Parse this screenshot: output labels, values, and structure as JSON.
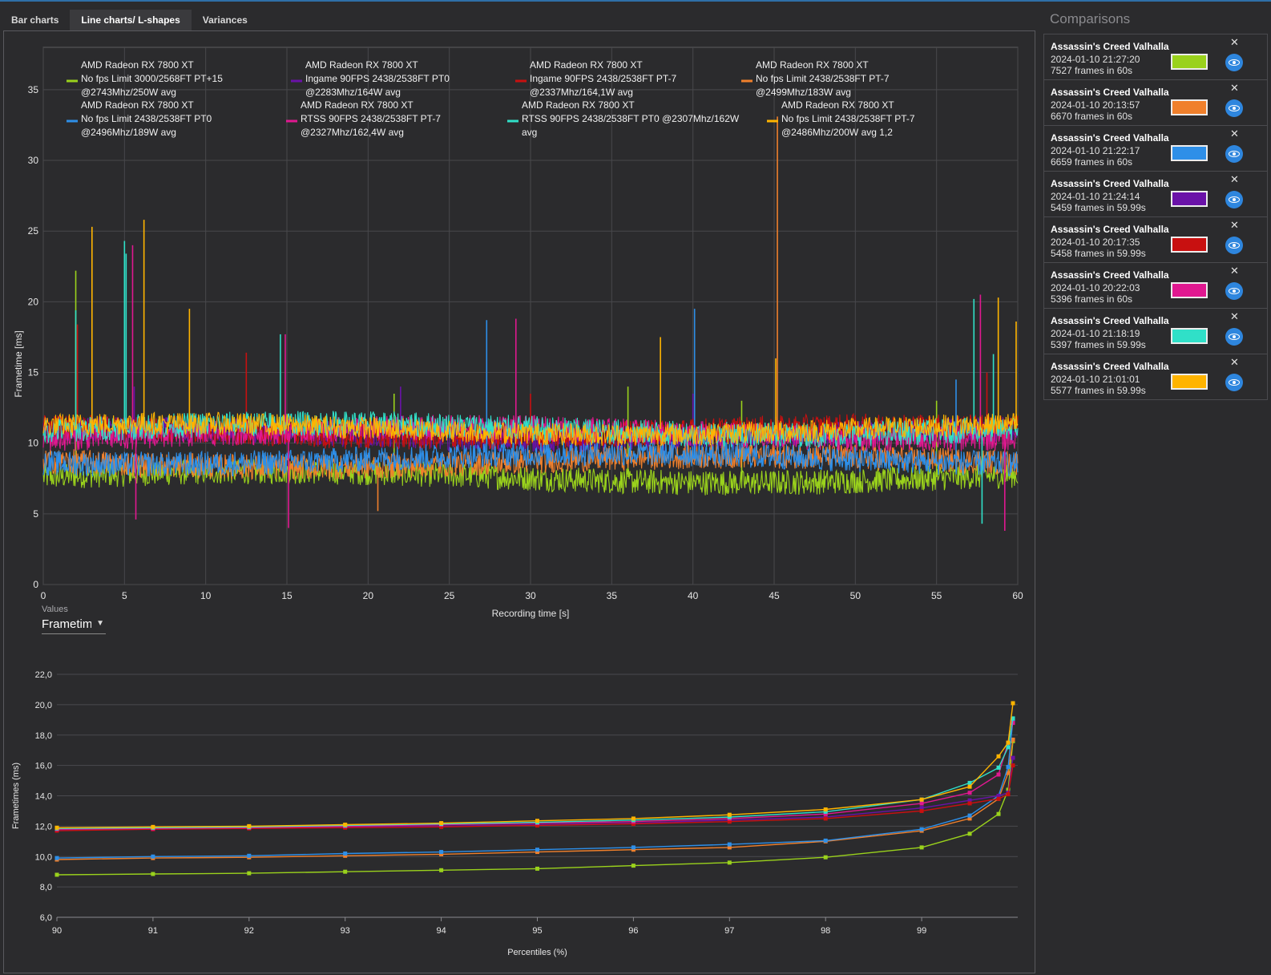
{
  "tabs": [
    {
      "label": "Bar charts"
    },
    {
      "label": "Line charts/ L-shapes"
    },
    {
      "label": "Variances"
    }
  ],
  "comparisons_title": "Comparisons",
  "comparisons": [
    {
      "game": "Assassin's Creed Valhalla",
      "date": "2024-01-10 21:27:20",
      "frames": "7527 frames in 60s",
      "color": "#9ad21c"
    },
    {
      "game": "Assassin's Creed Valhalla",
      "date": "2024-01-10 20:13:57",
      "frames": "6670 frames in 60s",
      "color": "#f0802c"
    },
    {
      "game": "Assassin's Creed Valhalla",
      "date": "2024-01-10 21:22:17",
      "frames": "6659 frames in 60s",
      "color": "#2e8fe8"
    },
    {
      "game": "Assassin's Creed Valhalla",
      "date": "2024-01-10 21:24:14",
      "frames": "5459 frames in 59.99s",
      "color": "#6a12a8"
    },
    {
      "game": "Assassin's Creed Valhalla",
      "date": "2024-01-10 20:17:35",
      "frames": "5458 frames in 59.99s",
      "color": "#c81010"
    },
    {
      "game": "Assassin's Creed Valhalla",
      "date": "2024-01-10 20:22:03",
      "frames": "5396 frames in 60s",
      "color": "#e01890"
    },
    {
      "game": "Assassin's Creed Valhalla",
      "date": "2024-01-10 21:18:19",
      "frames": "5397 frames in 59.99s",
      "color": "#30e0c8"
    },
    {
      "game": "Assassin's Creed Valhalla",
      "date": "2024-01-10 21:01:01",
      "frames": "5577 frames in 59.99s",
      "color": "#ffb400"
    }
  ],
  "values_selector": {
    "label": "Values",
    "selected": "Frametimes"
  },
  "chart_data": [
    {
      "type": "line",
      "xlabel": "Recording time [s]",
      "ylabel": "Frametime [ms]",
      "xlim": [
        0,
        60
      ],
      "ylim": [
        0,
        38
      ],
      "xticks": [
        0,
        5,
        10,
        15,
        20,
        25,
        30,
        35,
        40,
        45,
        50,
        55,
        60
      ],
      "yticks": [
        0,
        5,
        10,
        15,
        20,
        25,
        30,
        35
      ],
      "grid": true,
      "legend_position": "top",
      "series": [
        {
          "name": "AMD Radeon RX 7800 XT\nNo fps Limit 3000/2568FT PT+15\n@2743Mhz/250W avg",
          "color": "#9ad21c",
          "mean": 7.6,
          "spread": 0.9,
          "spikes": [
            [
              2.0,
              22.2
            ],
            [
              21.6,
              13.5
            ],
            [
              36.0,
              14.0
            ],
            [
              43.0,
              13.0
            ],
            [
              55.0,
              13.0
            ]
          ]
        },
        {
          "name": "AMD Radeon RX 7800 XT\nIngame 90FPS 2438/2538FT PT0\n@2283Mhz/164W avg",
          "color": "#6a12a8",
          "mean": 10.6,
          "spread": 0.9,
          "spikes": [
            [
              5.6,
              14.0
            ],
            [
              22.0,
              14.0
            ],
            [
              40.0,
              13.5
            ]
          ]
        },
        {
          "name": "AMD Radeon RX 7800 XT\nIngame 90FPS 2438/2538FT PT-7\n@2337Mhz/164,1W avg",
          "color": "#c81010",
          "mean": 10.8,
          "spread": 0.9,
          "spikes": [
            [
              2.1,
              18.4
            ],
            [
              12.5,
              16.4
            ],
            [
              30.0,
              13.5
            ],
            [
              58.1,
              15.0
            ]
          ]
        },
        {
          "name": "AMD Radeon RX 7800 XT\nNo fps Limit 2438/2538FT PT-7\n@2499Mhz/183W avg",
          "color": "#f0802c",
          "mean": 8.7,
          "spread": 0.9,
          "spikes": [
            [
              45.2,
              33.1
            ],
            [
              20.6,
              5.2
            ]
          ]
        },
        {
          "name": "AMD Radeon RX 7800 XT\nNo fps Limit 2438/2538FT PT0\n@2496Mhz/189W avg",
          "color": "#2e8fe8",
          "mean": 8.9,
          "spread": 0.9,
          "spikes": [
            [
              27.3,
              18.7
            ],
            [
              40.1,
              19.5
            ],
            [
              56.2,
              14.5
            ]
          ]
        },
        {
          "name": "AMD Radeon RX 7800 XT\nRTSS 90FPS 2438/2538FT PT-7\n@2327Mhz/162,4W avg",
          "color": "#e01890",
          "mean": 10.7,
          "spread": 0.9,
          "spikes": [
            [
              5.5,
              24.0
            ],
            [
              5.7,
              4.6
            ],
            [
              14.9,
              17.7
            ],
            [
              15.1,
              4.0
            ],
            [
              29.1,
              18.8
            ],
            [
              57.7,
              20.5
            ],
            [
              59.2,
              3.8
            ]
          ]
        },
        {
          "name": "AMD Radeon RX 7800 XT\nRTSS 90FPS 2438/2538FT PT0 @2307Mhz/162W\navg",
          "color": "#30e0c8",
          "mean": 11.0,
          "spread": 0.9,
          "spikes": [
            [
              2.0,
              19.4
            ],
            [
              5.0,
              24.3
            ],
            [
              5.1,
              23.4
            ],
            [
              14.6,
              17.7
            ],
            [
              57.3,
              20.2
            ],
            [
              58.5,
              16.3
            ],
            [
              57.8,
              4.3
            ]
          ]
        },
        {
          "name": "AMD Radeon RX 7800 XT\nNo fps Limit 2438/2538FT PT-7\n@2486Mhz/200W avg 1,2",
          "color": "#ffb400",
          "mean": 11.0,
          "spread": 0.8,
          "spikes": [
            [
              3.0,
              25.3
            ],
            [
              6.2,
              25.8
            ],
            [
              9.0,
              19.5
            ],
            [
              38.0,
              17.5
            ],
            [
              45.1,
              16.0
            ],
            [
              58.8,
              20.3
            ],
            [
              59.9,
              18.6
            ]
          ]
        }
      ]
    },
    {
      "type": "line",
      "xlabel": "Percentiles (%)",
      "ylabel": "Frametimes (ms)",
      "xlim": [
        90,
        100
      ],
      "ylim": [
        6,
        22
      ],
      "xticks": [
        90,
        91,
        92,
        93,
        94,
        95,
        96,
        97,
        98,
        99
      ],
      "yticks": [
        "6,0",
        "8,0",
        "10,0",
        "12,0",
        "14,0",
        "16,0",
        "18,0",
        "20,0",
        "22,0"
      ],
      "grid": true,
      "x": [
        90,
        91,
        92,
        93,
        94,
        95,
        96,
        97,
        98,
        99,
        99.5,
        99.8,
        99.9,
        99.95
      ],
      "series": [
        {
          "color": "#9ad21c",
          "values": [
            8.8,
            8.85,
            8.9,
            9.0,
            9.1,
            9.2,
            9.4,
            9.6,
            9.95,
            10.6,
            11.5,
            12.8,
            14.4,
            17.6
          ]
        },
        {
          "color": "#f0802c",
          "values": [
            9.8,
            9.9,
            9.95,
            10.05,
            10.15,
            10.3,
            10.45,
            10.6,
            11.0,
            11.7,
            12.5,
            13.8,
            15.5,
            17.7
          ]
        },
        {
          "color": "#2e8fe8",
          "values": [
            9.9,
            10.0,
            10.05,
            10.2,
            10.3,
            10.45,
            10.6,
            10.8,
            11.05,
            11.8,
            12.7,
            14.0,
            15.9,
            19.0
          ]
        },
        {
          "color": "#6a12a8",
          "values": [
            11.75,
            11.8,
            11.9,
            11.95,
            12.0,
            12.1,
            12.2,
            12.4,
            12.6,
            13.2,
            13.7,
            14.0,
            14.2,
            16.5
          ]
        },
        {
          "color": "#c81010",
          "values": [
            11.7,
            11.8,
            11.85,
            11.9,
            11.95,
            12.05,
            12.15,
            12.3,
            12.5,
            13.0,
            13.5,
            13.8,
            14.1,
            16.0
          ]
        },
        {
          "color": "#e01890",
          "values": [
            11.8,
            11.85,
            11.9,
            12.0,
            12.1,
            12.2,
            12.3,
            12.5,
            12.8,
            13.5,
            14.2,
            15.4,
            17.5,
            18.8
          ]
        },
        {
          "color": "#30e0c8",
          "values": [
            11.85,
            11.9,
            11.95,
            12.05,
            12.15,
            12.25,
            12.4,
            12.6,
            12.95,
            13.75,
            14.85,
            15.85,
            17.2,
            19.1
          ]
        },
        {
          "color": "#ffb400",
          "values": [
            11.9,
            11.95,
            12.0,
            12.1,
            12.2,
            12.35,
            12.5,
            12.75,
            13.1,
            13.75,
            14.6,
            16.6,
            17.5,
            20.1
          ]
        }
      ]
    }
  ]
}
